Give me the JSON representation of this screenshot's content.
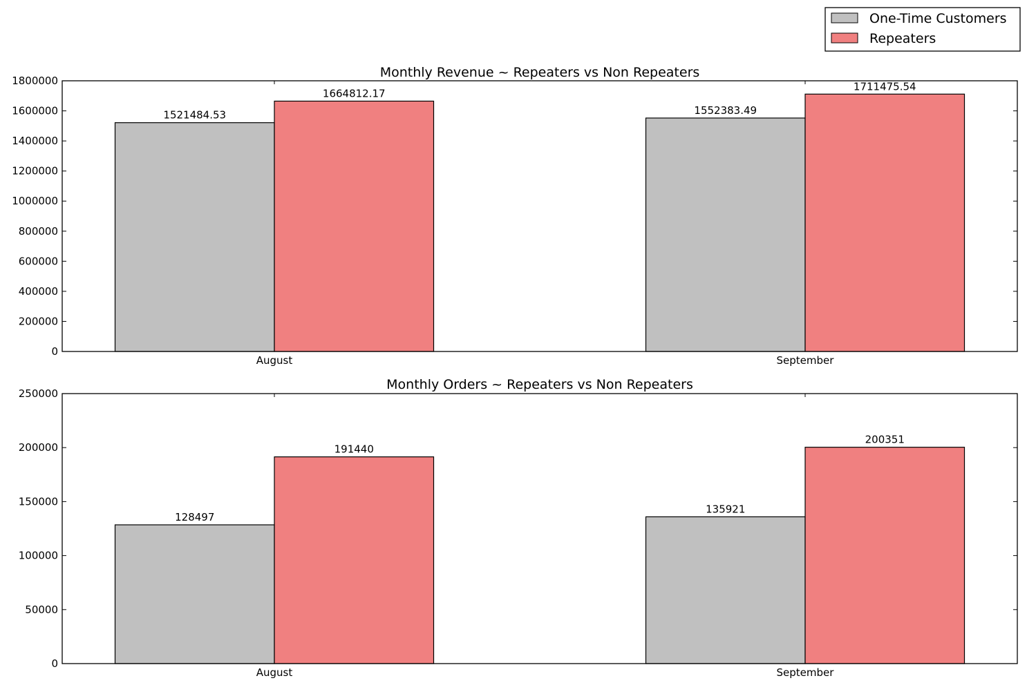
{
  "legend": {
    "placement": "top-right",
    "items": [
      {
        "label": "One-Time Customers",
        "color": "#c0c0c0"
      },
      {
        "label": "Repeaters",
        "color": "#f08080"
      }
    ]
  },
  "chart_data": [
    {
      "type": "bar",
      "title": "Monthly Revenue ~ Repeaters vs Non Repeaters",
      "xlabel": "",
      "ylabel": "",
      "categories": [
        "August",
        "September"
      ],
      "ylim": [
        0,
        1800000
      ],
      "yticks": [
        0,
        200000,
        400000,
        600000,
        800000,
        1000000,
        1200000,
        1400000,
        1600000,
        1800000
      ],
      "grid": false,
      "series": [
        {
          "name": "One-Time Customers",
          "color": "#c0c0c0",
          "values": [
            1521484.53,
            1552383.49
          ],
          "labels": [
            "1521484.53",
            "1552383.49"
          ]
        },
        {
          "name": "Repeaters",
          "color": "#f08080",
          "values": [
            1664812.17,
            1711475.54
          ],
          "labels": [
            "1664812.17",
            "1711475.54"
          ]
        }
      ]
    },
    {
      "type": "bar",
      "title": "Monthly Orders ~ Repeaters vs Non Repeaters",
      "xlabel": "",
      "ylabel": "",
      "categories": [
        "August",
        "September"
      ],
      "ylim": [
        0,
        250000
      ],
      "yticks": [
        0,
        50000,
        100000,
        150000,
        200000,
        250000
      ],
      "grid": false,
      "series": [
        {
          "name": "One-Time Customers",
          "color": "#c0c0c0",
          "values": [
            128497,
            135921
          ],
          "labels": [
            "128497",
            "135921"
          ]
        },
        {
          "name": "Repeaters",
          "color": "#f08080",
          "values": [
            191440,
            200351
          ],
          "labels": [
            "191440",
            "200351"
          ]
        }
      ]
    }
  ]
}
